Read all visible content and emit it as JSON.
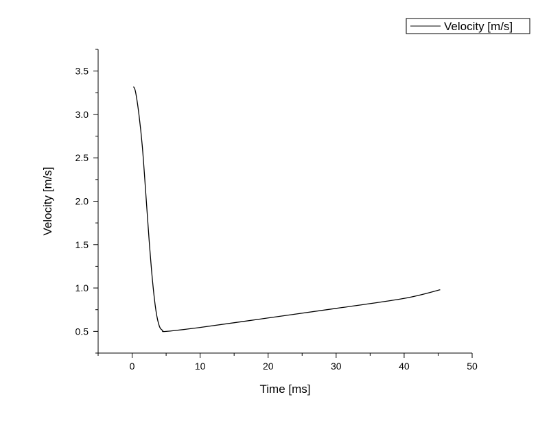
{
  "chart_data": {
    "type": "line",
    "title": "",
    "xlabel": "Time [ms]",
    "ylabel": "Velocity [m/s]",
    "xlim": [
      -5,
      50
    ],
    "ylim": [
      0.25,
      3.75
    ],
    "x_ticks": [
      0,
      10,
      20,
      30,
      40,
      50
    ],
    "x_tick_labels": [
      "0",
      "10",
      "20",
      "30",
      "40",
      "50"
    ],
    "y_ticks": [
      0.5,
      1.0,
      1.5,
      2.0,
      2.5,
      3.0,
      3.5
    ],
    "y_tick_labels": [
      "0.5",
      "1.0",
      "1.5",
      "2.0",
      "2.5",
      "3.0",
      "3.5"
    ],
    "grid": false,
    "legend_position": "top-right",
    "series": [
      {
        "name": "Velocity [m/s]",
        "color": "#000000",
        "x": [
          0.2,
          0.5,
          1.0,
          1.5,
          2.0,
          2.5,
          3.0,
          3.5,
          4.0,
          4.5,
          5.0,
          10,
          20,
          30,
          40,
          45.3
        ],
        "y": [
          3.32,
          3.26,
          3.0,
          2.63,
          2.1,
          1.55,
          1.08,
          0.74,
          0.56,
          0.51,
          0.5,
          0.545,
          0.655,
          0.765,
          0.88,
          0.98
        ]
      }
    ]
  }
}
